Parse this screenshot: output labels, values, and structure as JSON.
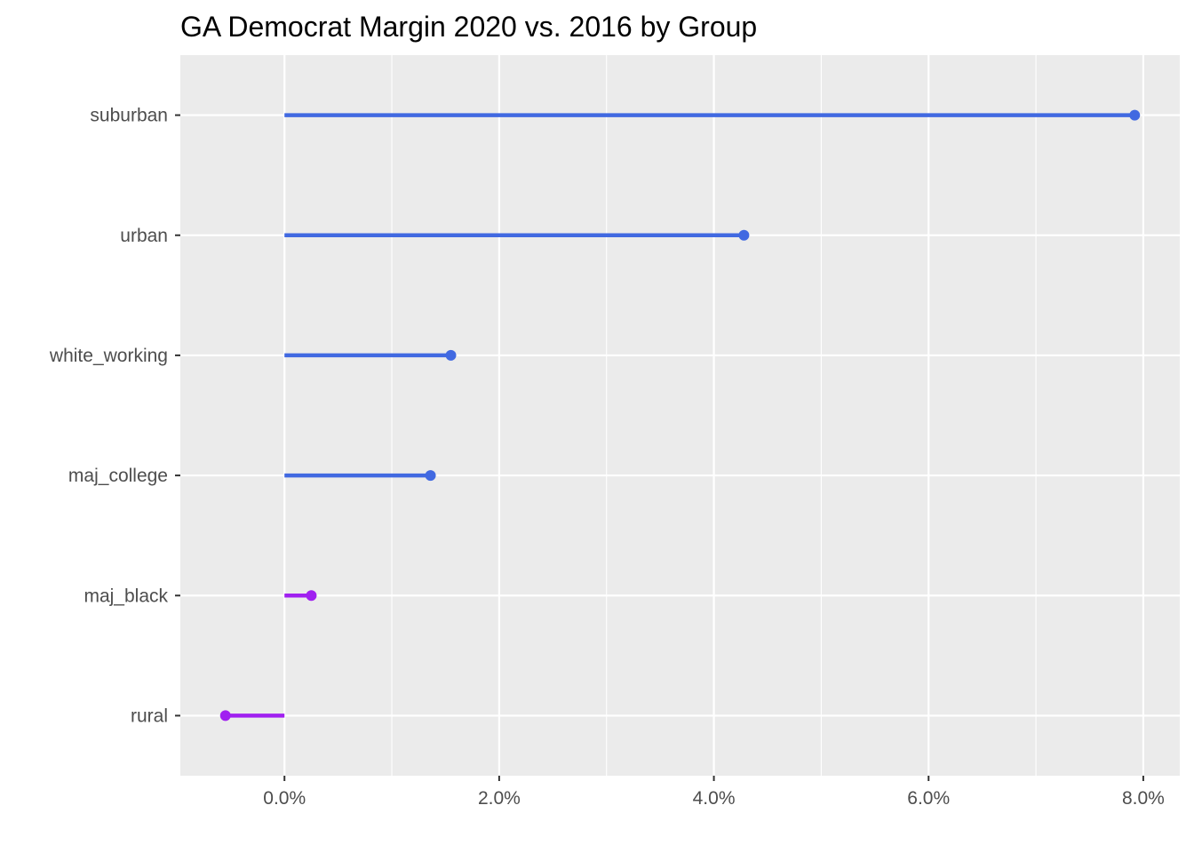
{
  "chart_data": {
    "type": "lollipop",
    "title": "GA Democrat Margin 2020 vs. 2016 by Group",
    "xlabel": "",
    "ylabel": "",
    "xlim": [
      -0.0097,
      0.0834
    ],
    "x_ticks": [
      0.0,
      0.02,
      0.04,
      0.06,
      0.08
    ],
    "x_tick_labels": [
      "0.0%",
      "2.0%",
      "4.0%",
      "6.0%",
      "8.0%"
    ],
    "categories": [
      "suburban",
      "urban",
      "white_working",
      "maj_college",
      "maj_black",
      "rural"
    ],
    "values": [
      0.0792,
      0.0428,
      0.0155,
      0.0136,
      0.0025,
      -0.0055
    ],
    "colors": [
      "#4169E1",
      "#4169E1",
      "#4169E1",
      "#4169E1",
      "#A020F0",
      "#A020F0"
    ],
    "grid": true,
    "legend": "none"
  }
}
